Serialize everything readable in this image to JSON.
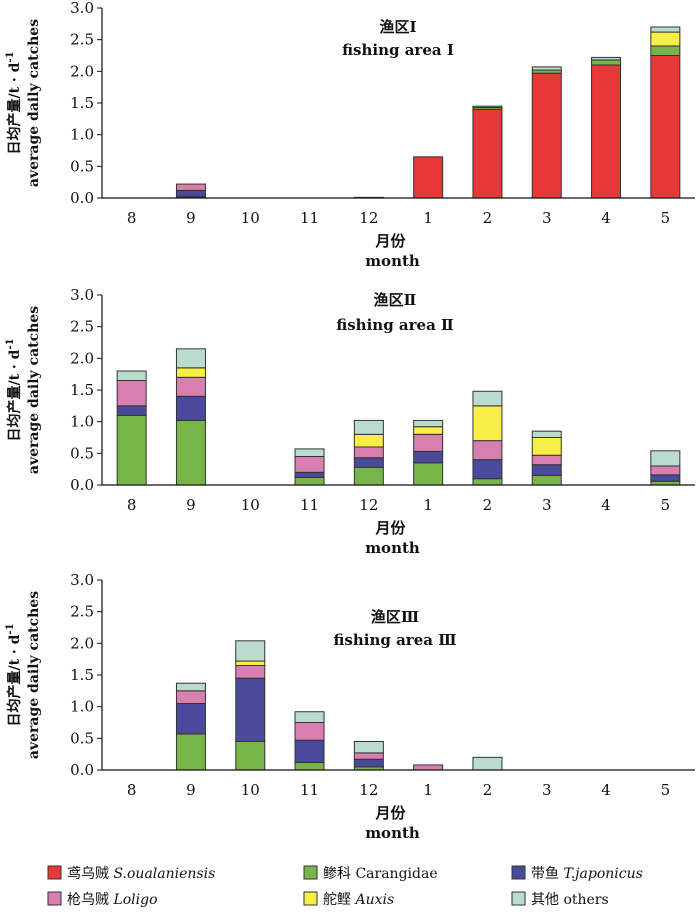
{
  "chart_data": {
    "type": "bar",
    "stacked": true,
    "categories": [
      "8",
      "9",
      "10",
      "11",
      "12",
      "1",
      "2",
      "3",
      "4",
      "5"
    ],
    "xlabel_cn": "月份",
    "xlabel_en": "month",
    "ylabel_cn": "日均产量/t · d",
    "ylabel_sup": "-1",
    "ylabel_en": "average daily catches",
    "ylim": [
      0,
      3.0
    ],
    "yticks": [
      "0.0",
      "0.5",
      "1.0",
      "1.5",
      "2.0",
      "2.5",
      "3.0"
    ],
    "colors": {
      "S.oualaniensis": "#e8393a",
      "Carangidae": "#77b548",
      "T.japonicus": "#4a4a9c",
      "Loligo": "#d77fb0",
      "Auxis": "#f7ee47",
      "others": "#b9dccf"
    },
    "legend": [
      {
        "key": "S.oualaniensis",
        "cn": "鸢乌贼",
        "en": "S.oualaniensis",
        "italic": true
      },
      {
        "key": "Carangidae",
        "cn": "鲹科",
        "en": "Carangidae",
        "italic": false
      },
      {
        "key": "T.japonicus",
        "cn": "带鱼",
        "en": "T.japonicus",
        "italic": true
      },
      {
        "key": "Loligo",
        "cn": "枪乌贼",
        "en": "Loligo",
        "italic": true
      },
      {
        "key": "Auxis",
        "cn": "舵鲣",
        "en": "Auxis",
        "italic": true
      },
      {
        "key": "others",
        "cn": "其他",
        "en": "others",
        "italic": false
      }
    ],
    "panels": [
      {
        "title_cn": "渔区Ⅰ",
        "title_en": "fishing area Ⅰ",
        "series": [
          {
            "key": "S.oualaniensis",
            "values": [
              0,
              0.02,
              0,
              0,
              0.01,
              0.65,
              1.4,
              1.97,
              2.1,
              2.25
            ]
          },
          {
            "key": "Carangidae",
            "values": [
              0,
              0,
              0,
              0,
              0,
              0,
              0.03,
              0.05,
              0.08,
              0.15
            ]
          },
          {
            "key": "T.japonicus",
            "values": [
              0,
              0.1,
              0,
              0,
              0,
              0,
              0,
              0,
              0,
              0
            ]
          },
          {
            "key": "Loligo",
            "values": [
              0,
              0.1,
              0,
              0,
              0,
              0,
              0,
              0,
              0,
              0
            ]
          },
          {
            "key": "Auxis",
            "values": [
              0,
              0,
              0,
              0,
              0,
              0,
              0,
              0,
              0,
              0.22
            ]
          },
          {
            "key": "others",
            "values": [
              0,
              0,
              0,
              0,
              0,
              0,
              0.02,
              0.05,
              0.04,
              0.08
            ]
          }
        ]
      },
      {
        "title_cn": "渔区Ⅱ",
        "title_en": "fishing area Ⅱ",
        "series": [
          {
            "key": "S.oualaniensis",
            "values": [
              0,
              0,
              0,
              0,
              0,
              0,
              0,
              0,
              0,
              0
            ]
          },
          {
            "key": "Carangidae",
            "values": [
              1.1,
              1.02,
              0,
              0.12,
              0.28,
              0.35,
              0.1,
              0.15,
              0,
              0.06
            ]
          },
          {
            "key": "T.japonicus",
            "values": [
              0.15,
              0.38,
              0,
              0.08,
              0.15,
              0.18,
              0.3,
              0.17,
              0,
              0.1
            ]
          },
          {
            "key": "Loligo",
            "values": [
              0.4,
              0.3,
              0,
              0.25,
              0.17,
              0.27,
              0.3,
              0.15,
              0,
              0.14
            ]
          },
          {
            "key": "Auxis",
            "values": [
              0,
              0.15,
              0,
              0,
              0.2,
              0.12,
              0.55,
              0.28,
              0,
              0
            ]
          },
          {
            "key": "others",
            "values": [
              0.15,
              0.3,
              0,
              0.12,
              0.22,
              0.1,
              0.23,
              0.1,
              0,
              0.24
            ]
          }
        ]
      },
      {
        "title_cn": "渔区Ⅲ",
        "title_en": "fishing area Ⅲ",
        "series": [
          {
            "key": "S.oualaniensis",
            "values": [
              0,
              0,
              0,
              0,
              0,
              0,
              0,
              0,
              0,
              0
            ]
          },
          {
            "key": "Carangidae",
            "values": [
              0,
              0.57,
              0.45,
              0.12,
              0.05,
              0,
              0,
              0,
              0,
              0
            ]
          },
          {
            "key": "T.japonicus",
            "values": [
              0,
              0.48,
              1.0,
              0.35,
              0.12,
              0,
              0,
              0,
              0,
              0
            ]
          },
          {
            "key": "Loligo",
            "values": [
              0,
              0.2,
              0.2,
              0.28,
              0.1,
              0.08,
              0,
              0,
              0,
              0
            ]
          },
          {
            "key": "Auxis",
            "values": [
              0,
              0,
              0.07,
              0,
              0,
              0,
              0,
              0,
              0,
              0
            ]
          },
          {
            "key": "others",
            "values": [
              0,
              0.12,
              0.32,
              0.17,
              0.18,
              0,
              0.2,
              0,
              0,
              0
            ]
          }
        ]
      }
    ]
  }
}
